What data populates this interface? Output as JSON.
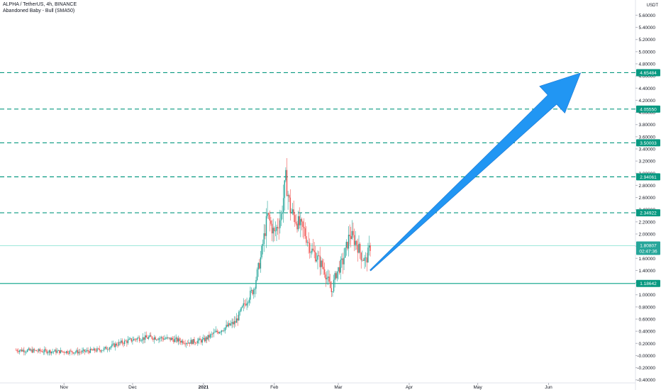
{
  "header": {
    "symbol": "ALPHA / TetherUS, 4h, BINANCE",
    "indicator": "Abandoned Baby - Bull (SMA50)"
  },
  "price_axis": {
    "unit": "USDT",
    "ticks": [
      "5.60000",
      "5.40000",
      "5.20000",
      "5.00000",
      "4.80000",
      "4.60000",
      "4.40000",
      "4.20000",
      "4.00000",
      "3.80000",
      "3.60000",
      "3.40000",
      "3.20000",
      "3.00000",
      "2.80000",
      "2.60000",
      "2.40000",
      "2.20000",
      "2.00000",
      "1.80000",
      "1.60000",
      "1.40000",
      "1.20000",
      "1.00000",
      "0.80000",
      "0.60000",
      "0.40000",
      "0.20000",
      "-0.00000",
      "-0.20000",
      "-0.40000"
    ]
  },
  "time_axis": {
    "ticks": [
      "Nov",
      "Dec",
      "2021",
      "Feb",
      "Mar",
      "Apr",
      "May",
      "Jun"
    ]
  },
  "colors": {
    "dashed_level": "#089981",
    "support_line": "#22ab94",
    "current_price_line": "#9ee8da",
    "label_bg": "#089981",
    "arrow": "#2196f3",
    "up_candle": "#26a69a",
    "down_candle": "#ef5350"
  },
  "chart_data": {
    "type": "candlestick",
    "symbol": "ALPHA / TetherUS",
    "interval": "4h",
    "exchange": "BINANCE",
    "y_unit": "USDT",
    "ylim": [
      -0.45,
      5.85
    ],
    "xlim": [
      "2020-10-04",
      "2021-07-09"
    ],
    "grid": false,
    "horizontal_levels": [
      {
        "value": 4.65484,
        "label": "4.65484",
        "style": "dashed"
      },
      {
        "value": 4.0555,
        "label": "4.05550",
        "style": "dashed"
      },
      {
        "value": 3.50003,
        "label": "3.50003",
        "style": "dashed"
      },
      {
        "value": 2.94061,
        "label": "2.94061",
        "style": "dashed"
      },
      {
        "value": 2.34922,
        "label": "2.34922",
        "style": "dashed"
      },
      {
        "value": 1.18642,
        "label": "1.18642",
        "style": "solid"
      }
    ],
    "current_price": {
      "value": 1.80807,
      "label": "1.80807",
      "countdown": "02:47:36"
    },
    "arrow": {
      "from": {
        "date": "2021-03-15",
        "price": 1.4
      },
      "to": {
        "date": "2021-06-15",
        "price": 4.65
      }
    },
    "price_path": [
      {
        "date": "2020-10-11",
        "price": 0.09
      },
      {
        "date": "2020-10-25",
        "price": 0.07
      },
      {
        "date": "2020-11-08",
        "price": 0.06
      },
      {
        "date": "2020-11-18",
        "price": 0.1
      },
      {
        "date": "2020-11-25",
        "price": 0.2
      },
      {
        "date": "2020-12-03",
        "price": 0.28
      },
      {
        "date": "2020-12-10",
        "price": 0.3
      },
      {
        "date": "2020-12-18",
        "price": 0.27
      },
      {
        "date": "2020-12-25",
        "price": 0.22
      },
      {
        "date": "2021-01-01",
        "price": 0.25
      },
      {
        "date": "2021-01-05",
        "price": 0.35
      },
      {
        "date": "2021-01-10",
        "price": 0.45
      },
      {
        "date": "2021-01-15",
        "price": 0.55
      },
      {
        "date": "2021-01-19",
        "price": 0.85
      },
      {
        "date": "2021-01-23",
        "price": 1.1
      },
      {
        "date": "2021-01-26",
        "price": 1.6
      },
      {
        "date": "2021-01-29",
        "price": 2.3
      },
      {
        "date": "2021-02-01",
        "price": 2.0
      },
      {
        "date": "2021-02-04",
        "price": 2.3
      },
      {
        "date": "2021-02-06",
        "price": 2.9
      },
      {
        "date": "2021-02-08",
        "price": 2.4
      },
      {
        "date": "2021-02-11",
        "price": 2.2
      },
      {
        "date": "2021-02-14",
        "price": 2.05
      },
      {
        "date": "2021-02-17",
        "price": 1.75
      },
      {
        "date": "2021-02-20",
        "price": 1.6
      },
      {
        "date": "2021-02-23",
        "price": 1.4
      },
      {
        "date": "2021-02-26",
        "price": 1.05
      },
      {
        "date": "2021-02-28",
        "price": 1.35
      },
      {
        "date": "2021-03-03",
        "price": 1.55
      },
      {
        "date": "2021-03-06",
        "price": 2.0
      },
      {
        "date": "2021-03-09",
        "price": 1.85
      },
      {
        "date": "2021-03-11",
        "price": 1.65
      },
      {
        "date": "2021-03-13",
        "price": 1.55
      },
      {
        "date": "2021-03-15",
        "price": 1.8
      }
    ]
  }
}
